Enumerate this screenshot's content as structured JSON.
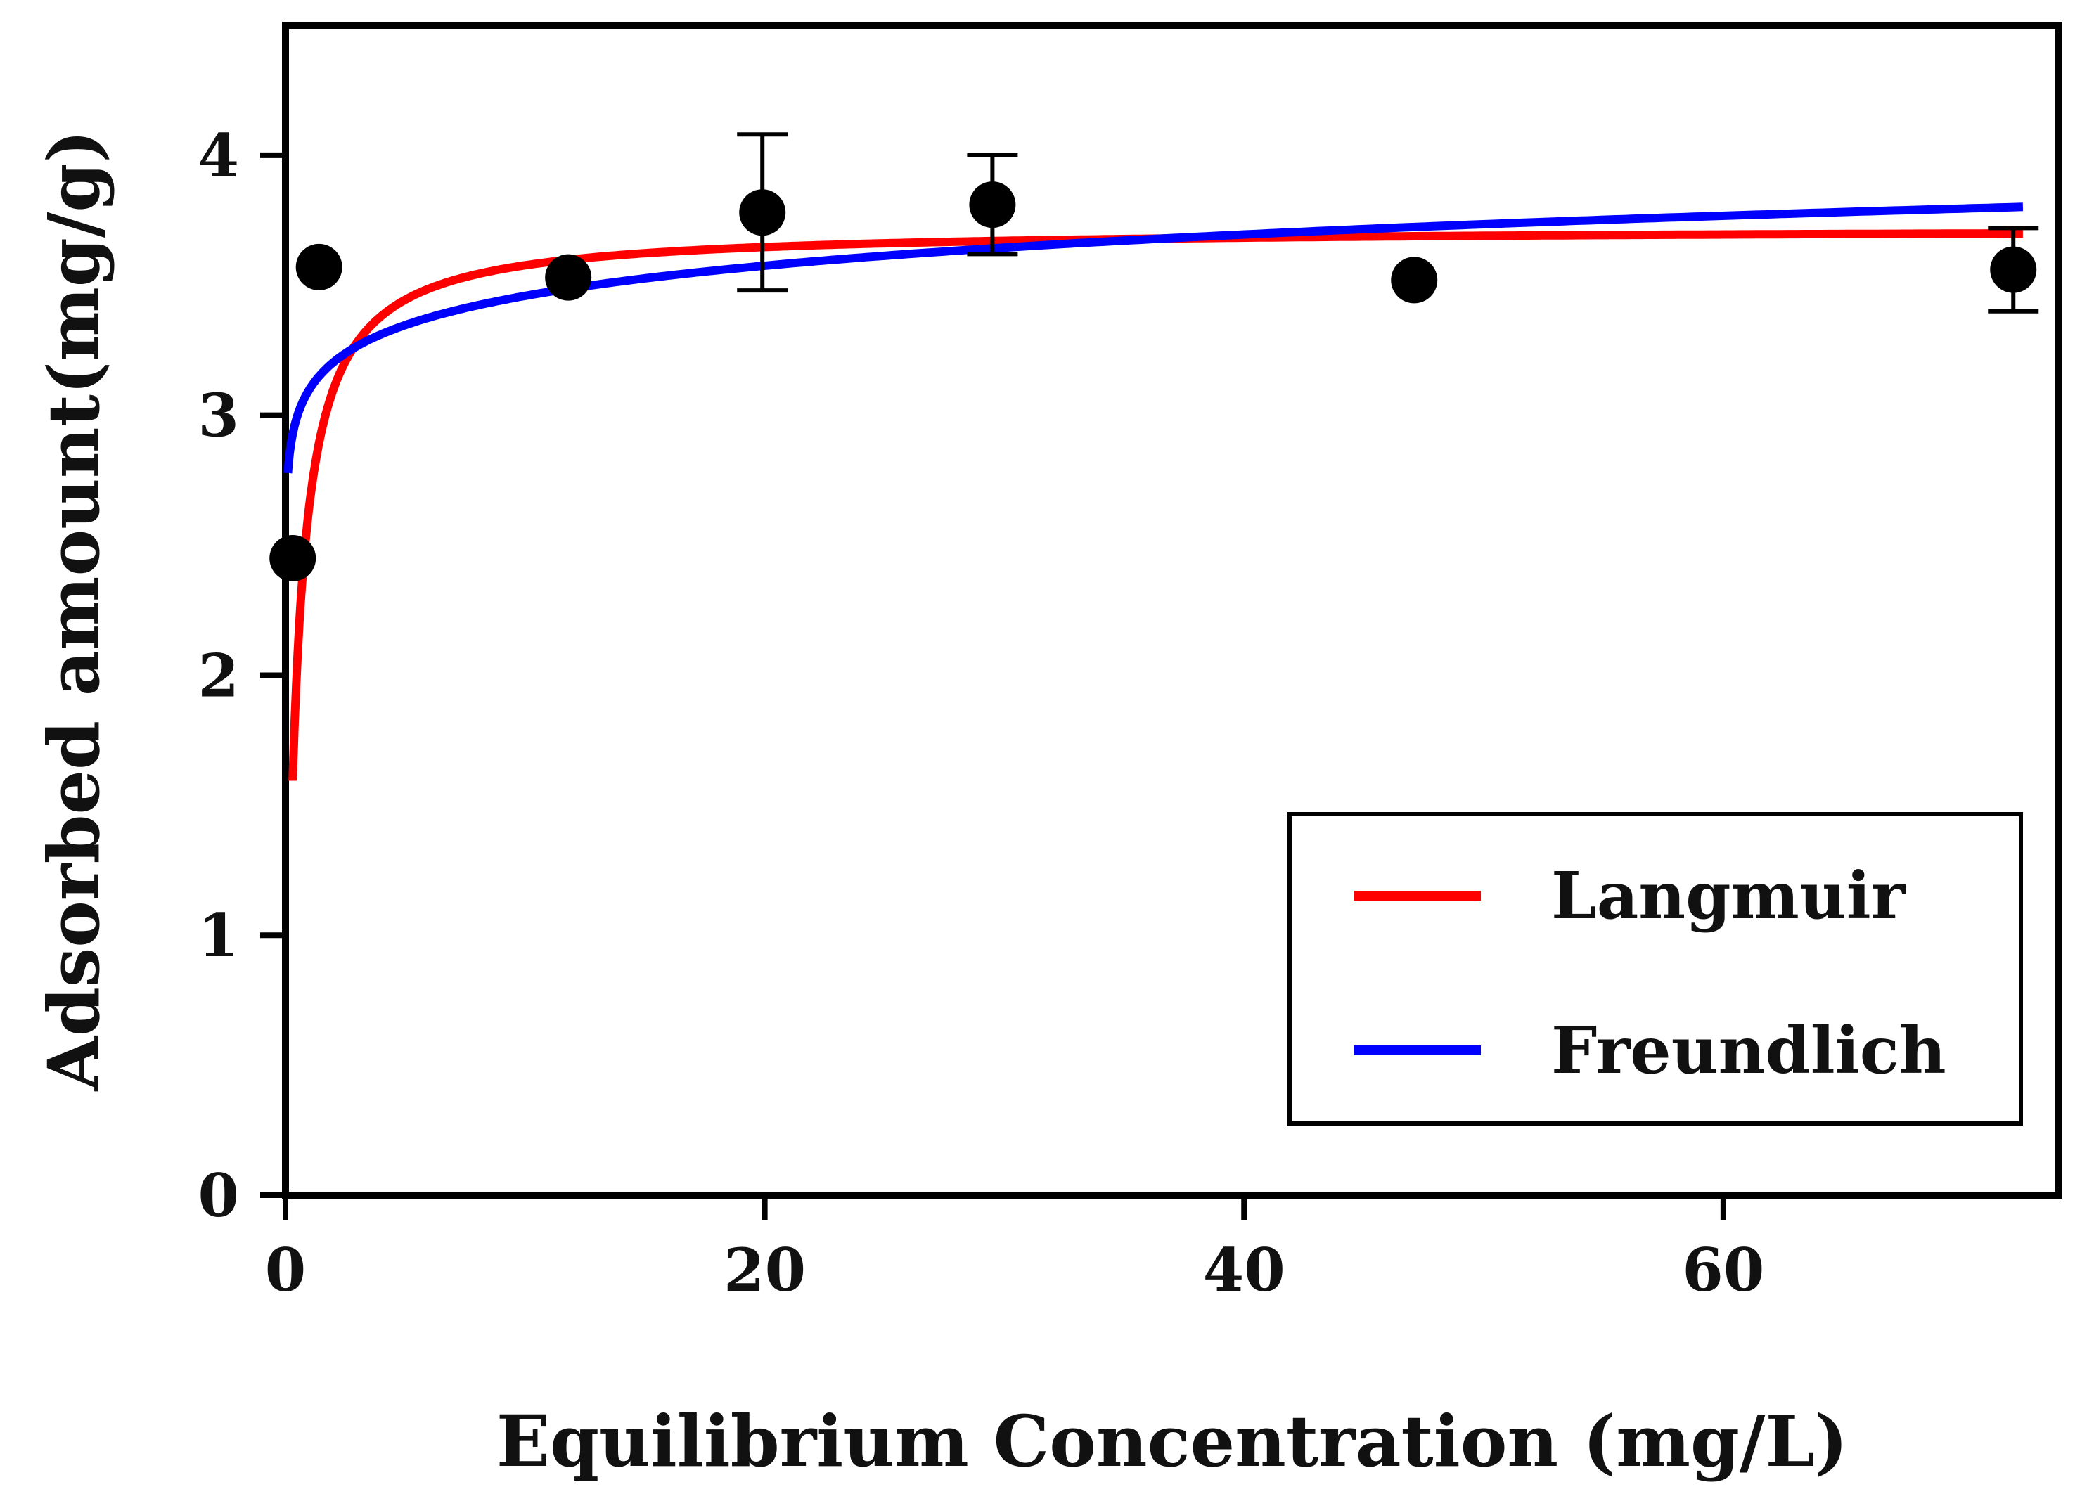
{
  "chart_data": {
    "type": "scatter",
    "title": "",
    "xlabel": "Equilibrium Concentration (mg/L)",
    "ylabel": "Adsorbed amount(mg/g)",
    "xlim": [
      0,
      74
    ],
    "ylim": [
      0,
      4.5
    ],
    "xticks": [
      0,
      20,
      40,
      60
    ],
    "yticks": [
      0,
      1,
      2,
      3,
      4
    ],
    "grid": false,
    "legend_position": "bottom-right",
    "points": [
      {
        "x": 0.3,
        "y": 2.45,
        "err": 0
      },
      {
        "x": 1.4,
        "y": 3.57,
        "err": 0
      },
      {
        "x": 11.8,
        "y": 3.53,
        "err": 0
      },
      {
        "x": 19.9,
        "y": 3.78,
        "err": 0.3
      },
      {
        "x": 29.5,
        "y": 3.81,
        "err": 0.19
      },
      {
        "x": 47.1,
        "y": 3.52,
        "err": 0
      },
      {
        "x": 72.1,
        "y": 3.56,
        "err": 0.16
      }
    ],
    "series": [
      {
        "name": "Langmuir",
        "color": "#ff0000",
        "model": "langmuir",
        "params": {
          "qmax": 3.72,
          "KL": 2.5
        },
        "x_range": [
          0.3,
          72.5
        ]
      },
      {
        "name": "Freundlich",
        "color": "#0000ff",
        "model": "freundlich",
        "params": {
          "KF": 3.1,
          "n": 21
        },
        "x_range": [
          0.1,
          72.5
        ]
      }
    ],
    "marker_color": "#000000"
  }
}
